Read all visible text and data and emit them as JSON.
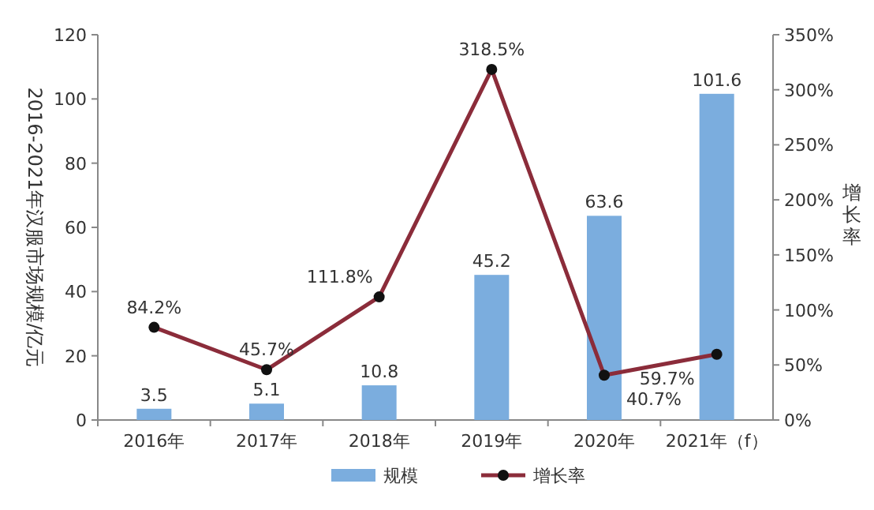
{
  "chart_data": {
    "type": "bar",
    "categories": [
      "2016年",
      "2017年",
      "2018年",
      "2019年",
      "2020年",
      "2021年（f）"
    ],
    "ylabel": "2016-2021年汉服市场规模/亿元",
    "y2label": "增长率",
    "ylim": [
      0,
      120
    ],
    "yticks": [
      0,
      20,
      40,
      60,
      80,
      100,
      120
    ],
    "y2lim": [
      0,
      350
    ],
    "y2ticks": [
      {
        "value": 0,
        "label": "0%"
      },
      {
        "value": 50,
        "label": "50%"
      },
      {
        "value": 100,
        "label": "100%"
      },
      {
        "value": 150,
        "label": "150%"
      },
      {
        "value": 200,
        "label": "200%"
      },
      {
        "value": 250,
        "label": "250%"
      },
      {
        "value": 300,
        "label": "300%"
      },
      {
        "value": 350,
        "label": "350%"
      }
    ],
    "series": [
      {
        "name": "规模",
        "color": "#7badde",
        "values": [
          3.5,
          5.1,
          10.8,
          45.2,
          63.6,
          101.6
        ],
        "value_labels": [
          "3.5",
          "5.1",
          "10.8",
          "45.2",
          "63.6",
          "101.6"
        ]
      },
      {
        "name": "增长率",
        "type": "line",
        "axis": "y2",
        "color": "#8b2c3a",
        "marker": "circle",
        "values": [
          84.2,
          45.7,
          111.8,
          318.5,
          40.7,
          59.7
        ],
        "value_labels": [
          "84.2%",
          "45.7%",
          "111.8%",
          "318.5%",
          "40.7%",
          "59.7%"
        ]
      }
    ],
    "legend": "bottom",
    "grid": false
  }
}
